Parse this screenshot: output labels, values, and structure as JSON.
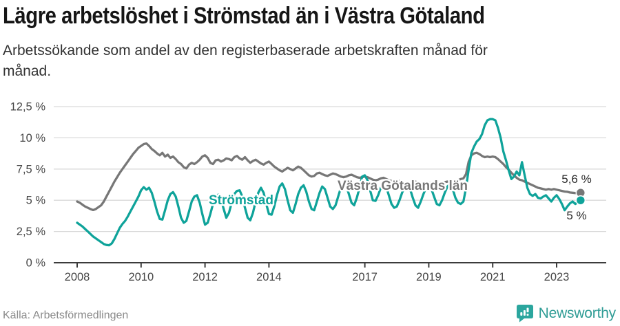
{
  "title": "Lägre arbetslöshet i Strömstad än i Västra Götaland",
  "subtitle": "Arbetssökande som andel av den registerbaserade arbetskraften månad för månad.",
  "source": "Källa: Arbetsförmedlingen",
  "branding": {
    "name": "Newsworthy",
    "icon": "bar-chart-pin-icon"
  },
  "colors": {
    "stromstad": "#0FA39A",
    "vastra_gotaland": "#777777",
    "grid": "#d9d9d9",
    "axis": "#3c3c3c",
    "tick_text": "#474747",
    "annotation_text": "#2a2a2a",
    "brand_teal": "#2BA69E"
  },
  "chart_data": {
    "type": "line",
    "frequency": "monthly",
    "x_start": "2008-01",
    "x_end": "2023-10",
    "unit": "%",
    "grid": true,
    "ylim": [
      0,
      12.5
    ],
    "y_ticks": [
      {
        "value": 0,
        "label": "0 %"
      },
      {
        "value": 2.5,
        "label": "2,5 %"
      },
      {
        "value": 5,
        "label": "5 %"
      },
      {
        "value": 7.5,
        "label": "7,5 %"
      },
      {
        "value": 10,
        "label": "10 %"
      },
      {
        "value": 12.5,
        "label": "12,5 %"
      }
    ],
    "x_ticks": [
      {
        "year": 2008,
        "label": "2008"
      },
      {
        "year": 2010,
        "label": "2010"
      },
      {
        "year": 2012,
        "label": "2012"
      },
      {
        "year": 2014,
        "label": "2014"
      },
      {
        "year": 2017,
        "label": "2017"
      },
      {
        "year": 2019,
        "label": "2019"
      },
      {
        "year": 2021,
        "label": "2021"
      },
      {
        "year": 2023,
        "label": "2023"
      }
    ],
    "series": [
      {
        "id": "vastra_gotaland",
        "name": "Västra Götalands län",
        "color": "#777777",
        "end_value": 5.6,
        "end_label": "5,6 %",
        "values": [
          4.9,
          4.8,
          4.65,
          4.5,
          4.4,
          4.3,
          4.22,
          4.3,
          4.45,
          4.6,
          4.9,
          5.3,
          5.7,
          6.1,
          6.5,
          6.85,
          7.2,
          7.5,
          7.8,
          8.1,
          8.4,
          8.7,
          8.95,
          9.2,
          9.35,
          9.5,
          9.55,
          9.35,
          9.1,
          8.95,
          8.75,
          8.6,
          8.8,
          8.5,
          8.65,
          8.4,
          8.5,
          8.3,
          8.05,
          7.9,
          7.65,
          7.55,
          7.85,
          8.0,
          7.9,
          8.05,
          8.25,
          8.5,
          8.6,
          8.4,
          8.0,
          7.9,
          8.2,
          8.25,
          8.1,
          8.2,
          8.35,
          8.3,
          8.2,
          8.45,
          8.55,
          8.35,
          8.25,
          8.45,
          8.2,
          8.0,
          8.15,
          8.25,
          8.1,
          7.95,
          7.85,
          8.0,
          8.1,
          7.9,
          7.7,
          7.55,
          7.4,
          7.3,
          7.45,
          7.6,
          7.5,
          7.4,
          7.55,
          7.7,
          7.6,
          7.4,
          7.2,
          7.0,
          6.9,
          6.95,
          7.15,
          7.2,
          7.1,
          7.0,
          6.95,
          7.05,
          7.15,
          7.1,
          7.0,
          6.9,
          6.85,
          6.9,
          7.0,
          7.05,
          6.95,
          6.85,
          6.8,
          6.85,
          6.9,
          6.85,
          6.75,
          6.65,
          6.6,
          6.65,
          6.75,
          6.8,
          6.7,
          6.6,
          6.55,
          6.6,
          6.6,
          6.55,
          6.45,
          6.4,
          6.35,
          6.4,
          6.5,
          6.5,
          6.4,
          6.3,
          6.3,
          6.35,
          6.4,
          6.35,
          6.3,
          6.25,
          6.3,
          6.35,
          6.45,
          6.5,
          6.45,
          6.4,
          6.5,
          6.6,
          6.7,
          6.75,
          7.1,
          8.1,
          8.6,
          8.75,
          8.8,
          8.7,
          8.55,
          8.45,
          8.5,
          8.45,
          8.5,
          8.45,
          8.3,
          8.1,
          7.9,
          7.65,
          7.45,
          7.2,
          7.0,
          6.8,
          6.65,
          6.6,
          6.5,
          6.4,
          6.3,
          6.2,
          6.1,
          6.0,
          5.95,
          5.9,
          5.85,
          5.9,
          5.85,
          5.9,
          5.85,
          5.8,
          5.75,
          5.7,
          5.68,
          5.62,
          5.6,
          5.58,
          5.6,
          5.6
        ]
      },
      {
        "id": "stromstad",
        "name": "Strömstad",
        "color": "#0FA39A",
        "end_value": 5.0,
        "end_label": "5 %",
        "values": [
          3.2,
          3.05,
          2.9,
          2.7,
          2.5,
          2.3,
          2.1,
          1.95,
          1.8,
          1.65,
          1.5,
          1.42,
          1.4,
          1.55,
          1.9,
          2.35,
          2.8,
          3.1,
          3.35,
          3.7,
          4.1,
          4.5,
          4.9,
          5.3,
          5.8,
          6.05,
          5.85,
          6.0,
          5.6,
          4.9,
          4.1,
          3.5,
          3.45,
          4.2,
          5.0,
          5.5,
          5.65,
          5.3,
          4.5,
          3.6,
          3.2,
          3.35,
          4.1,
          4.9,
          5.3,
          5.4,
          4.8,
          3.9,
          3.05,
          3.2,
          3.9,
          4.7,
          5.25,
          5.45,
          5.1,
          4.3,
          3.6,
          4.0,
          4.8,
          5.5,
          5.75,
          5.8,
          5.3,
          4.4,
          3.6,
          3.4,
          4.0,
          4.9,
          5.6,
          6.0,
          5.6,
          4.7,
          3.9,
          3.85,
          4.5,
          5.4,
          6.1,
          6.35,
          5.9,
          5.0,
          4.2,
          4.0,
          4.7,
          5.5,
          6.0,
          6.2,
          5.7,
          4.9,
          4.3,
          4.2,
          4.9,
          5.6,
          6.1,
          5.9,
          5.2,
          4.5,
          4.3,
          4.6,
          5.3,
          6.0,
          6.4,
          6.2,
          5.5,
          4.8,
          4.6,
          5.2,
          6.0,
          6.9,
          7.0,
          6.6,
          5.8,
          5.0,
          4.95,
          5.4,
          6.0,
          6.4,
          6.1,
          5.4,
          4.7,
          4.4,
          4.5,
          5.0,
          5.6,
          6.1,
          6.3,
          5.9,
          5.2,
          4.6,
          4.4,
          4.9,
          5.5,
          6.0,
          6.2,
          5.9,
          5.3,
          4.7,
          4.6,
          5.0,
          5.6,
          6.1,
          6.3,
          5.9,
          5.2,
          4.8,
          4.7,
          4.9,
          6.0,
          7.5,
          8.8,
          9.3,
          9.7,
          9.9,
          10.3,
          11.0,
          11.4,
          11.5,
          11.5,
          11.4,
          10.8,
          10.0,
          8.9,
          8.2,
          7.4,
          6.7,
          6.9,
          7.3,
          7.0,
          8.05,
          7.0,
          6.0,
          5.5,
          5.35,
          5.5,
          5.2,
          5.15,
          5.3,
          5.4,
          5.15,
          4.9,
          5.2,
          5.4,
          5.1,
          4.7,
          4.2,
          4.5,
          4.75,
          4.9,
          4.7,
          4.85,
          5.0
        ]
      }
    ]
  }
}
